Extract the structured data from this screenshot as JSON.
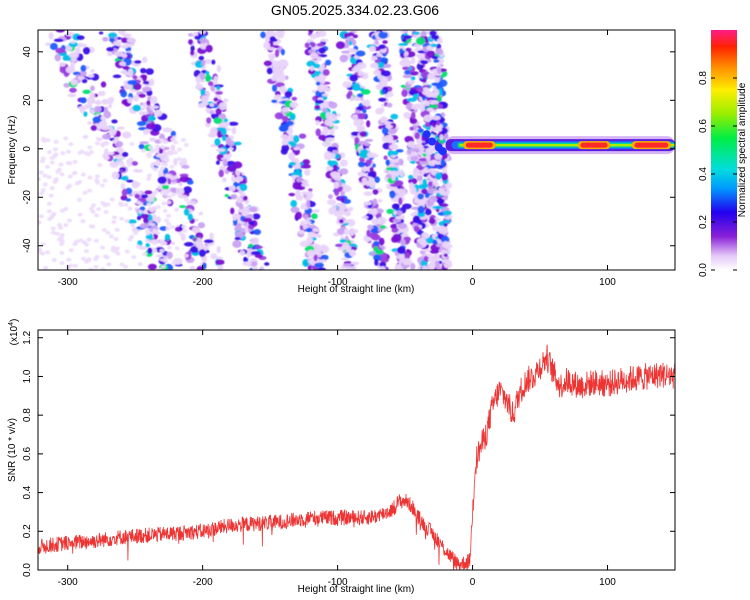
{
  "title": "GN05.2025.334.02.23.G06",
  "chart_data": [
    {
      "type": "heatmap",
      "xlabel": "Height of straight line (km)",
      "ylabel": "Frequency (Hz)",
      "xlim": [
        -322,
        150
      ],
      "ylim": [
        -50,
        49
      ],
      "xticks": [
        -300,
        -200,
        -100,
        0,
        100
      ],
      "xtick_labels": [
        "-300",
        "-200",
        "-100",
        "0",
        "100"
      ],
      "yticks": [
        -40,
        -20,
        0,
        20,
        40
      ],
      "ytick_labels": [
        "-40",
        "-20",
        "0",
        "20",
        "40"
      ],
      "colorbar": {
        "label": "Normalized spectral amplitude",
        "range": [
          0.0,
          1.0
        ],
        "ticks": [
          0.0,
          0.2,
          0.4,
          0.6,
          0.8
        ],
        "tick_labels": [
          "0.0",
          "0.2",
          "0.4",
          "0.6",
          "0.8"
        ]
      },
      "features": {
        "stripes": [
          {
            "x_top": -305,
            "x_bottom": -225
          },
          {
            "x_top": -265,
            "x_bottom": -195
          },
          {
            "x_top": -205,
            "x_bottom": -160
          },
          {
            "x_top": -150,
            "x_bottom": -115
          },
          {
            "x_top": -118,
            "x_bottom": -90
          },
          {
            "x_top": -92,
            "x_bottom": -68
          },
          {
            "x_top": -70,
            "x_bottom": -50
          },
          {
            "x_top": -50,
            "x_bottom": -35
          },
          {
            "x_top": -38,
            "x_bottom": -26
          },
          {
            "x_top": -28,
            "x_bottom": -18
          }
        ],
        "stripe_x_cutoff": -18,
        "ridge": {
          "x_start": -20,
          "x_end": 150,
          "frequency": 1.5
        },
        "ridge_peaks": [
          {
            "x_start": -5,
            "x_end": 15,
            "amplitude": 0.95
          },
          {
            "x_start": 80,
            "x_end": 100,
            "amplitude": 0.95
          },
          {
            "x_start": 120,
            "x_end": 145,
            "amplitude": 0.95
          }
        ]
      }
    },
    {
      "type": "line",
      "xlabel": "Height of straight line (km)",
      "ylabel": "SNR (10 * v/v)",
      "y_multiplier": "(x10",
      "y_exponent": "4",
      "y_multiplier_close": ")",
      "xlim": [
        -322,
        150
      ],
      "ylim": [
        0.0,
        1.24
      ],
      "xticks": [
        -300,
        -200,
        -100,
        0,
        100
      ],
      "xtick_labels": [
        "-300",
        "-200",
        "-100",
        "0",
        "100"
      ],
      "yticks": [
        0.0,
        0.2,
        0.4,
        0.6,
        0.8,
        1.0,
        1.2
      ],
      "ytick_labels": [
        "0.0",
        "0.2",
        "0.4",
        "0.6",
        "0.8",
        "1.0",
        "1.2"
      ],
      "color": "#ee3333",
      "series": [
        {
          "name": "SNR",
          "x": [
            -322,
            -300,
            -280,
            -260,
            -240,
            -220,
            -200,
            -180,
            -160,
            -140,
            -120,
            -100,
            -80,
            -70,
            -60,
            -55,
            -50,
            -45,
            -40,
            -35,
            -30,
            -25,
            -20,
            -15,
            -10,
            -5,
            -2,
            0,
            2,
            5,
            10,
            15,
            20,
            25,
            30,
            35,
            40,
            45,
            50,
            55,
            60,
            65,
            70,
            80,
            90,
            100,
            110,
            120,
            130,
            140,
            150
          ],
          "y": [
            0.12,
            0.14,
            0.15,
            0.17,
            0.18,
            0.19,
            0.2,
            0.23,
            0.24,
            0.25,
            0.27,
            0.27,
            0.27,
            0.28,
            0.31,
            0.35,
            0.36,
            0.33,
            0.27,
            0.23,
            0.19,
            0.15,
            0.1,
            0.06,
            0.03,
            0.04,
            0.05,
            0.3,
            0.55,
            0.62,
            0.7,
            0.85,
            0.93,
            0.88,
            0.8,
            0.92,
            0.98,
            1.0,
            1.05,
            1.1,
            1.02,
            0.95,
            0.98,
            0.95,
            0.97,
            0.96,
            0.98,
            0.99,
            1.0,
            1.01,
            1.0
          ]
        }
      ]
    }
  ]
}
